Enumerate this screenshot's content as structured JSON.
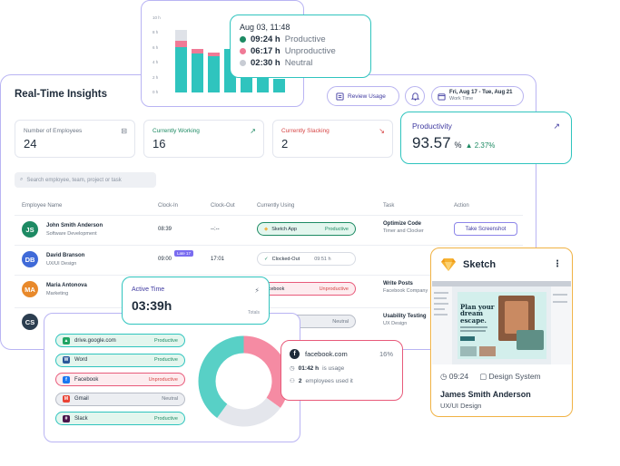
{
  "insights": {
    "title": "Real-Time Insights",
    "review_usage": "Review Usage",
    "date_range": "Fri, Aug 17 - Tue, Aug 21",
    "date_sub": "Work Time",
    "stats": [
      {
        "label": "Number of Employees",
        "value": "24"
      },
      {
        "label": "Currently Working",
        "value": "16"
      },
      {
        "label": "Currently Slacking",
        "value": "2"
      }
    ],
    "search_placeholder": "Search employee, team, project or task",
    "columns": [
      "Employee Name",
      "Clock-In",
      "Clock-Out",
      "Currently Using",
      "Task",
      "Action"
    ],
    "rows": [
      {
        "initials": "JS",
        "name": "John Smith Anderson",
        "role": "Software Development",
        "clock_in": "08:39",
        "clock_out": "--:--",
        "using": "Sketch App",
        "using_status": "Productive",
        "task": "Optimize Code",
        "task_sub": "Timer and Clocker",
        "action": "Take Screenshot",
        "color": "#1d8a63"
      },
      {
        "initials": "DB",
        "name": "David Branson",
        "role": "UX/UI Design",
        "clock_in": "09:00",
        "late": "Late 17",
        "clock_out": "17:01",
        "using": "Clocked-Out",
        "using_status": "09:51 h",
        "task": "",
        "task_sub": "",
        "action": "",
        "color": "#3f6ad8"
      },
      {
        "initials": "MA",
        "name": "Maria Antonova",
        "role": "Marketing",
        "clock_in": "",
        "clock_out": "",
        "using": "facebook",
        "using_status": "Unproductive",
        "task": "Write Posts",
        "task_sub": "Facebook Company",
        "action": "",
        "color": "#e8892b"
      },
      {
        "initials": "CS",
        "name": "",
        "role": "",
        "clock_in": "",
        "clock_out": "",
        "using": "",
        "using_status": "Neutral",
        "task": "Usability Testing",
        "task_sub": "UX Design",
        "action": "",
        "color": "#2c3e50"
      }
    ]
  },
  "bar_chart": {
    "y_ticks": [
      "10 h",
      "8 h",
      "6 h",
      "4 h",
      "2 h",
      "0 h"
    ],
    "bars": [
      {
        "productive": 6.1,
        "unproductive": 0.8,
        "neutral": 1.5
      },
      {
        "productive": 5.2,
        "unproductive": 0.6,
        "neutral": 0.0
      },
      {
        "productive": 4.9,
        "unproductive": 0.5,
        "neutral": 0.0
      },
      {
        "productive": 5.8,
        "unproductive": 0.0,
        "neutral": 0.0
      },
      {
        "productive": 4.0,
        "unproductive": 0.0,
        "neutral": 0.0
      },
      {
        "productive": 2.1,
        "unproductive": 0.0,
        "neutral": 0.0
      },
      {
        "productive": 1.8,
        "unproductive": 0.0,
        "neutral": 0.0
      }
    ],
    "colors": {
      "productive": "#2fc4be",
      "unproductive": "#f07a96",
      "neutral": "#dfe2e8"
    }
  },
  "tooltip": {
    "date": "Aug 03, 11:48",
    "rows": [
      {
        "hours": "09:24 h",
        "label": "Productive",
        "color": "#1d8a63"
      },
      {
        "hours": "06:17 h",
        "label": "Unproductive",
        "color": "#f07a96"
      },
      {
        "hours": "02:30 h",
        "label": "Neutral",
        "color": "#c8ccd4"
      }
    ]
  },
  "productivity": {
    "label": "Productivity",
    "value": "93.57",
    "unit": "%",
    "change": "▲ 2.37%"
  },
  "active_time": {
    "label": "Active Time",
    "value": "03:39h",
    "sub": "Totals"
  },
  "apps": [
    {
      "name": "drive.google.com",
      "status": "Productive",
      "kind": "productive",
      "icon_char": "▲",
      "icon_color": "#1fa463"
    },
    {
      "name": "Word",
      "status": "Productive",
      "kind": "productive",
      "icon_char": "W",
      "icon_color": "#2b579a"
    },
    {
      "name": "Facebook",
      "status": "Unproductive",
      "kind": "unproductive",
      "icon_char": "f",
      "icon_color": "#1877f2"
    },
    {
      "name": "Gmail",
      "status": "Neutral",
      "kind": "neutral",
      "icon_char": "M",
      "icon_color": "#ea4335"
    },
    {
      "name": "Slack",
      "status": "Productive",
      "kind": "productive",
      "icon_char": "#",
      "icon_color": "#4a154b"
    }
  ],
  "donut": {
    "productive": 40,
    "unproductive": 35,
    "neutral": 25
  },
  "fb_tip": {
    "site": "facebook.com",
    "percent": "16%",
    "usage_value": "01:42 h",
    "usage_label": " is usage",
    "employees_value": "2",
    "employees_label": " employees used it"
  },
  "sketch": {
    "app": "Sketch",
    "time": "09:24",
    "project": "Design System",
    "name": "James Smith Anderson",
    "role": "UX/UI Design",
    "screen_headline": "Plan your dream escape."
  }
}
